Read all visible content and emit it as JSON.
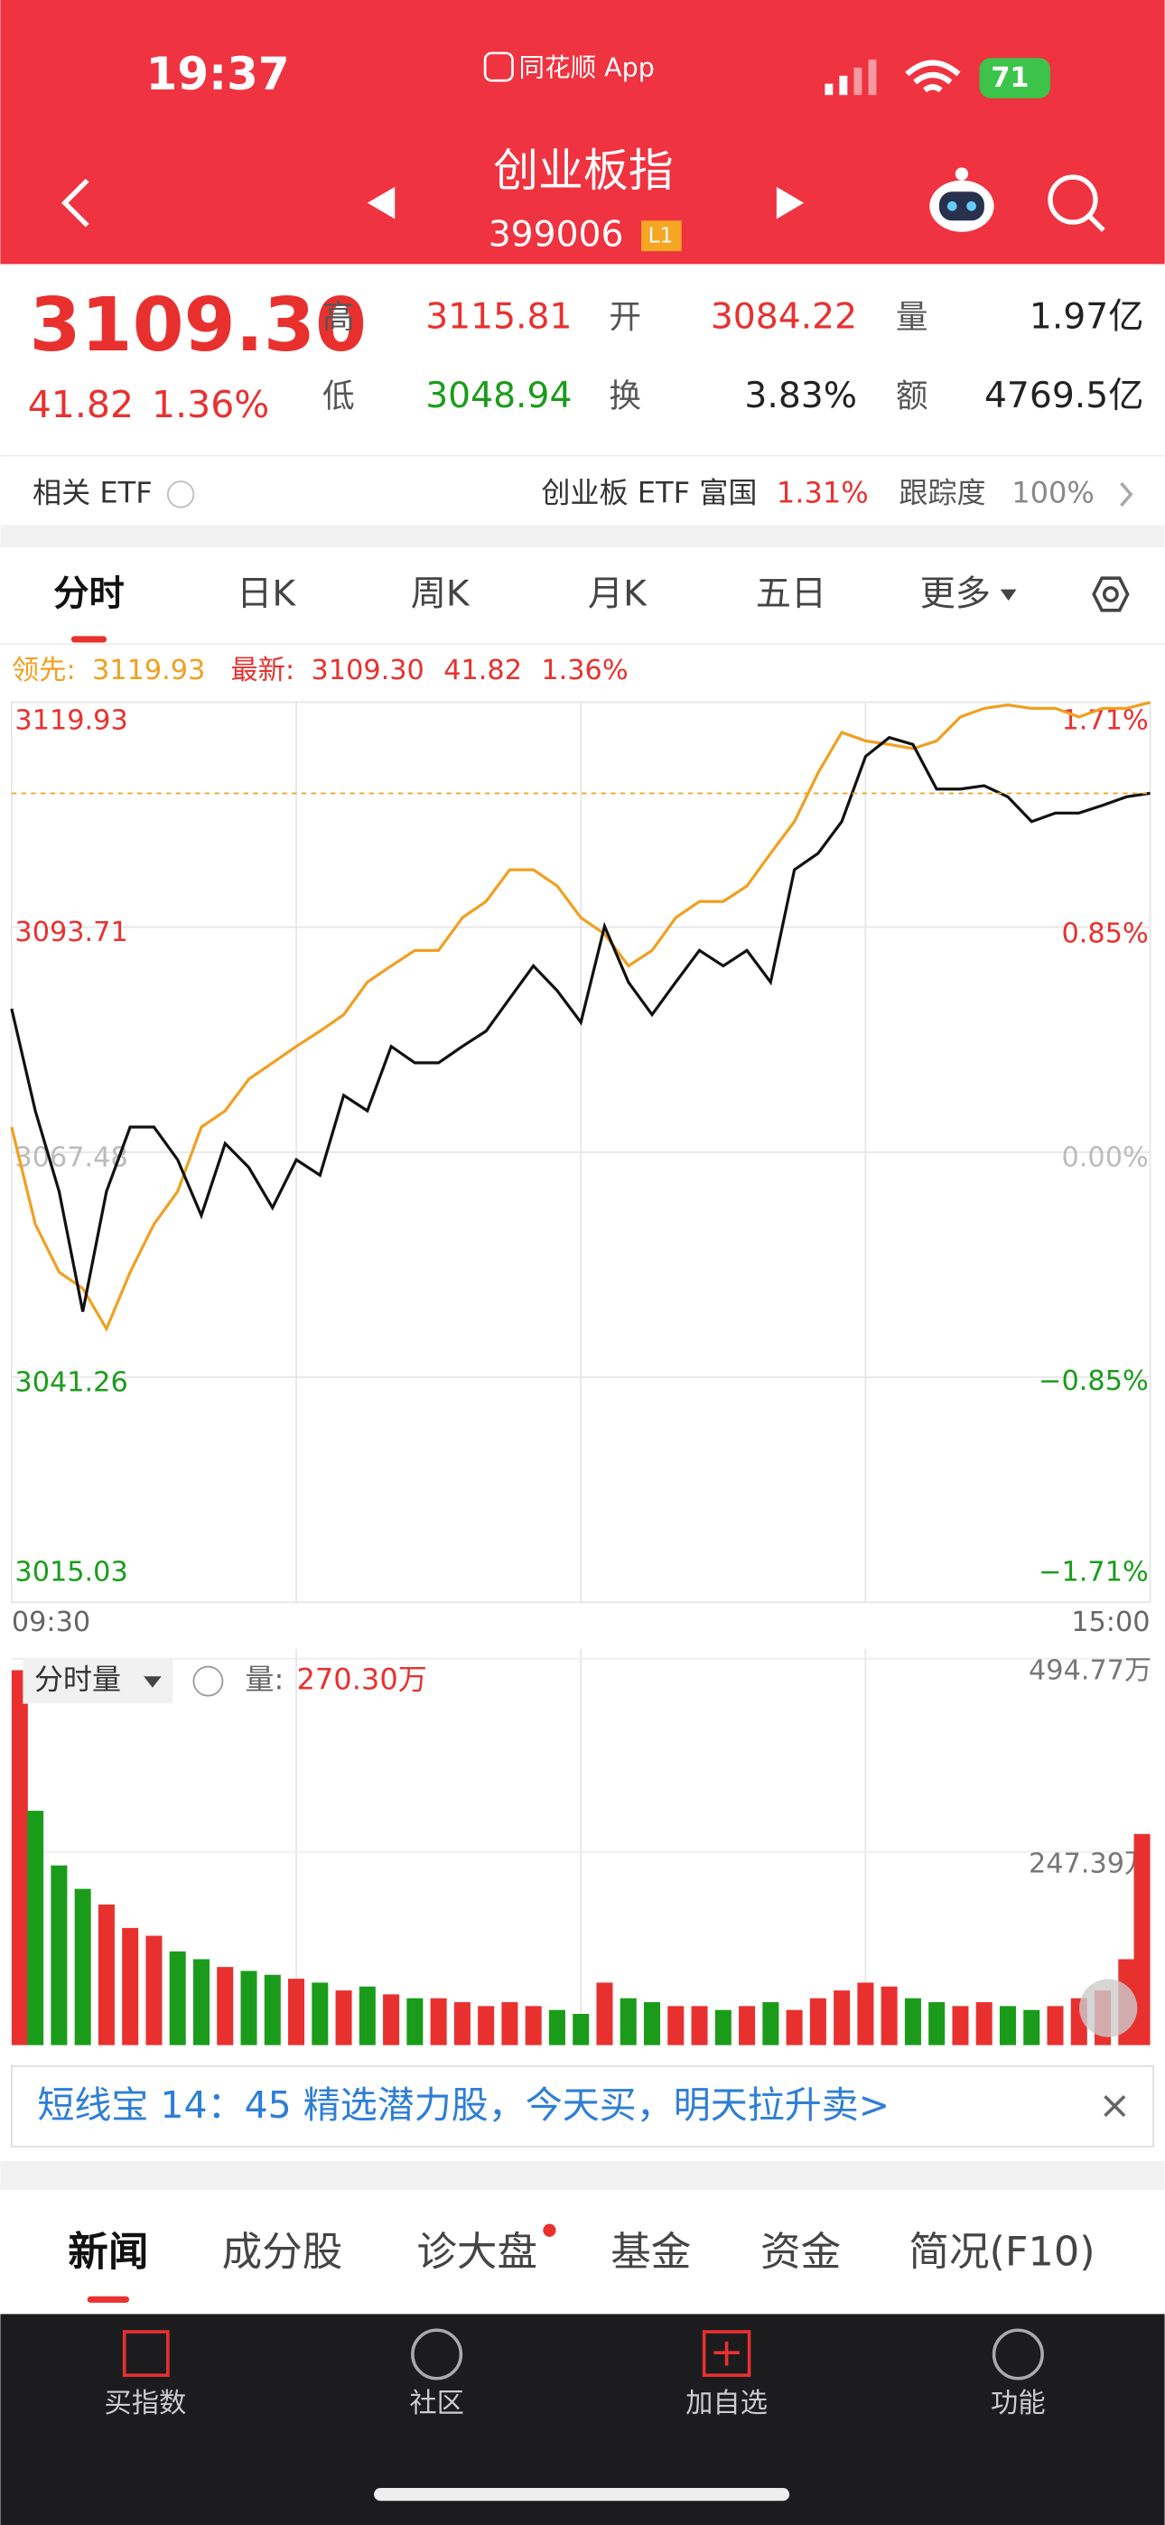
{
  "status_bar": {
    "time": "19:37",
    "app": "同花顺 App",
    "battery": "71"
  },
  "header": {
    "title": "创业板指",
    "code": "399006",
    "badge": "L1"
  },
  "quote": {
    "price": "3109.30",
    "change": "41.82",
    "change_pct": "1.36%",
    "high_label": "高",
    "high": "3115.81",
    "low_label": "低",
    "low": "3048.94",
    "open_label": "开",
    "open": "3084.22",
    "turnover_label": "换",
    "turnover": "3.83%",
    "volume_label": "量",
    "volume": "1.97亿",
    "amount_label": "额",
    "amount": "4769.5亿"
  },
  "etf": {
    "label": "相关 ETF",
    "name": "创业板 ETF 富国",
    "pct": "1.31%",
    "track_label": "跟踪度",
    "track": "100%"
  },
  "tabs": [
    "分时",
    "日K",
    "周K",
    "月K",
    "五日",
    "更多"
  ],
  "chart_data": [
    {
      "type": "line",
      "legend": [
        {
          "label": "领先:",
          "value": "3119.93"
        },
        {
          "label": "最新:",
          "value": "3109.30"
        },
        {
          "value": "41.82"
        },
        {
          "value": "1.36%"
        }
      ],
      "x": [
        0,
        5,
        10,
        15,
        20,
        25,
        30,
        35,
        40,
        45,
        50,
        55,
        60,
        65,
        70,
        75,
        80,
        85,
        90,
        95,
        100,
        105,
        110,
        115,
        120,
        125,
        130,
        135,
        140,
        145,
        150,
        155,
        160,
        165,
        170,
        175,
        180,
        185,
        190,
        195,
        200,
        205,
        210,
        215,
        220,
        225,
        230,
        235,
        240
      ],
      "xlim": [
        0,
        240
      ],
      "xticks": [
        {
          "value": 0,
          "label": "09:30"
        },
        {
          "value": 240,
          "label": "15:00"
        }
      ],
      "ylim": [
        3015.03,
        3119.93
      ],
      "yticks": [
        3119.93,
        3093.71,
        3067.48,
        3041.26,
        3015.03
      ],
      "y2lim": [
        -1.71,
        1.71
      ],
      "y2ticks": [
        {
          "value": 1.71,
          "label": "1.71%"
        },
        {
          "value": 0.85,
          "label": "0.85%"
        },
        {
          "value": 0,
          "label": "0.00%"
        },
        {
          "value": -0.85,
          "label": "−0.85%"
        },
        {
          "value": -1.71,
          "label": "−1.71%"
        }
      ],
      "grid": true,
      "series": [
        {
          "name": "最新:",
          "color": "#111111",
          "values": [
            3084.2,
            3072.3,
            3062.9,
            3048.9,
            3062.9,
            3070.4,
            3070.4,
            3066.6,
            3060.1,
            3068.5,
            3065.7,
            3061.0,
            3066.6,
            3064.8,
            3074.1,
            3072.3,
            3079.8,
            3077.9,
            3077.9,
            3079.8,
            3081.6,
            3085.4,
            3089.2,
            3086.3,
            3082.6,
            3093.8,
            3087.3,
            3083.5,
            3087.3,
            3091.0,
            3089.2,
            3091.0,
            3087.3,
            3100.4,
            3102.3,
            3106.0,
            3113.6,
            3115.8,
            3115.0,
            3109.8,
            3109.8,
            3110.2,
            3108.9,
            3106.0,
            3107.0,
            3107.0,
            3107.9,
            3108.9,
            3109.3
          ]
        },
        {
          "name": "领先:",
          "color": "#f0a020",
          "values": [
            3070.4,
            3059.1,
            3053.5,
            3051.6,
            3046.9,
            3053.5,
            3059.1,
            3062.9,
            3070.4,
            3072.3,
            3076.0,
            3077.9,
            3079.8,
            3081.6,
            3083.5,
            3087.3,
            3089.2,
            3091.0,
            3091.0,
            3094.8,
            3096.7,
            3100.4,
            3100.4,
            3098.5,
            3094.8,
            3092.9,
            3089.2,
            3091.0,
            3094.8,
            3096.7,
            3096.7,
            3098.5,
            3102.3,
            3106.0,
            3111.7,
            3116.4,
            3115.4,
            3115.0,
            3114.5,
            3115.4,
            3118.2,
            3119.2,
            3119.6,
            3119.2,
            3119.2,
            3118.2,
            3119.2,
            3119.2,
            3119.9
          ]
        }
      ]
    },
    {
      "type": "bar",
      "legend": [
        {
          "label": "分时量"
        },
        {
          "label": "量:",
          "value": "270.30万"
        }
      ],
      "x": [
        0,
        5,
        10,
        15,
        20,
        25,
        30,
        35,
        40,
        45,
        50,
        55,
        60,
        65,
        70,
        75,
        80,
        85,
        90,
        95,
        100,
        105,
        110,
        115,
        120,
        125,
        130,
        135,
        140,
        145,
        150,
        155,
        160,
        165,
        170,
        175,
        180,
        185,
        190,
        195,
        200,
        205,
        210,
        215,
        220,
        225,
        230,
        235,
        240
      ],
      "xlim": [
        0,
        240
      ],
      "ylim": [
        0,
        494.77
      ],
      "yticks": [
        {
          "value": 494.77,
          "label": "494.77万"
        },
        {
          "value": 247.39,
          "label": "247.39万"
        }
      ],
      "up_color": "#e8312f",
      "down_color": "#1a9c1a",
      "values": [
        480,
        300,
        230,
        200,
        180,
        150,
        140,
        120,
        110,
        100,
        95,
        90,
        85,
        80,
        70,
        75,
        65,
        60,
        60,
        55,
        50,
        55,
        50,
        45,
        40,
        80,
        60,
        55,
        50,
        50,
        45,
        50,
        55,
        45,
        60,
        70,
        80,
        75,
        60,
        55,
        50,
        55,
        50,
        45,
        50,
        60,
        70,
        110,
        270.3
      ]
    }
  ],
  "banner": {
    "text": "短线宝 14：45 精选潜力股，今天买，明天拉升卖>",
    "close": "×"
  },
  "bottom_tabs": [
    "新闻",
    "成分股",
    "诊大盘",
    "基金",
    "资金",
    "简况(F10)"
  ],
  "nav": [
    "买指数",
    "社区",
    "加自选",
    "功能"
  ]
}
